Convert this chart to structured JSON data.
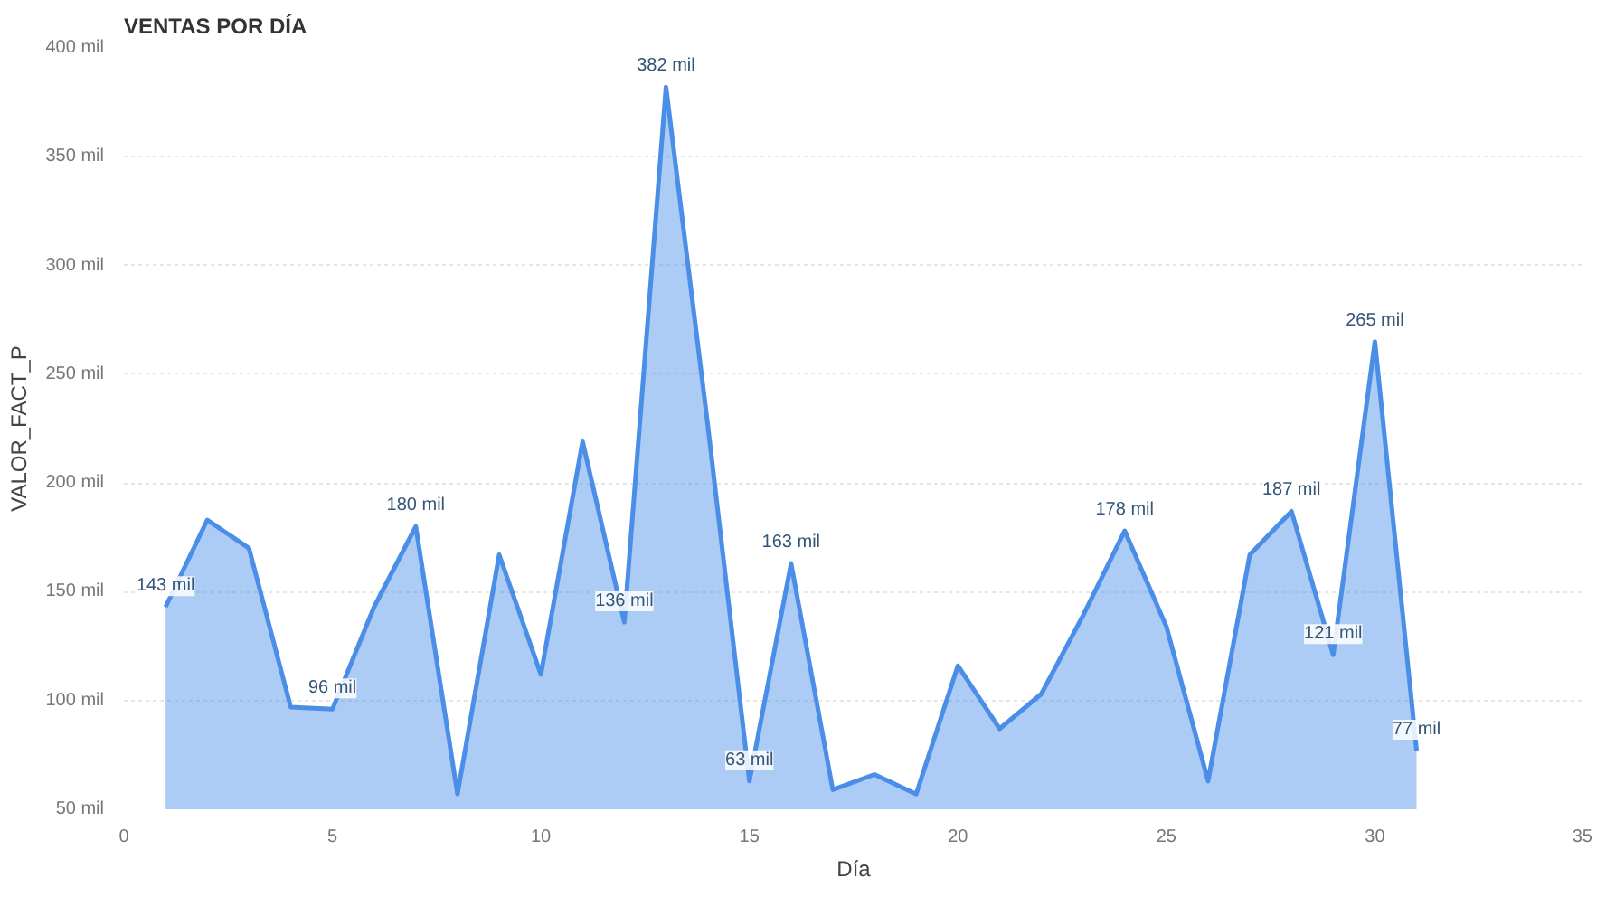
{
  "chart_data": {
    "type": "area",
    "title": "VENTAS POR DÍA",
    "xlabel": "Día",
    "ylabel": "VALOR_FACT_P",
    "x": [
      1,
      2,
      3,
      4,
      5,
      6,
      7,
      8,
      9,
      10,
      11,
      12,
      13,
      14,
      15,
      16,
      17,
      18,
      19,
      20,
      21,
      22,
      23,
      24,
      25,
      26,
      27,
      28,
      29,
      30,
      31
    ],
    "series": [
      {
        "color": "#4a8ee8",
        "values": [
          143,
          183,
          170,
          97,
          96,
          143,
          180,
          57,
          167,
          112,
          219,
          136,
          382,
          227,
          63,
          163,
          59,
          66,
          57,
          116,
          87,
          103,
          139,
          178,
          134,
          63,
          167,
          187,
          121,
          265,
          77
        ],
        "value_labels": [
          "143 mil",
          null,
          null,
          null,
          "96 mil",
          null,
          "180 mil",
          null,
          null,
          null,
          null,
          "136 mil",
          "382 mil",
          null,
          "63 mil",
          "163 mil",
          null,
          null,
          null,
          null,
          null,
          null,
          null,
          "178 mil",
          null,
          null,
          null,
          "187 mil",
          "121 mil",
          "265 mil",
          "77 mil"
        ]
      }
    ],
    "xlim": [
      0,
      35
    ],
    "xticks": [
      0,
      5,
      10,
      15,
      20,
      25,
      30,
      35
    ],
    "ylim": [
      50,
      400
    ],
    "yticks": [
      {
        "value": 50,
        "label": "50 mil"
      },
      {
        "value": 100,
        "label": "100 mil"
      },
      {
        "value": 150,
        "label": "150 mil"
      },
      {
        "value": 200,
        "label": "200 mil"
      },
      {
        "value": 250,
        "label": "250 mil"
      },
      {
        "value": 300,
        "label": "300 mil"
      },
      {
        "value": 350,
        "label": "350 mil"
      },
      {
        "value": 400,
        "label": "400 mil"
      }
    ],
    "grid": "y",
    "marker": "none",
    "line_style": "solid"
  }
}
